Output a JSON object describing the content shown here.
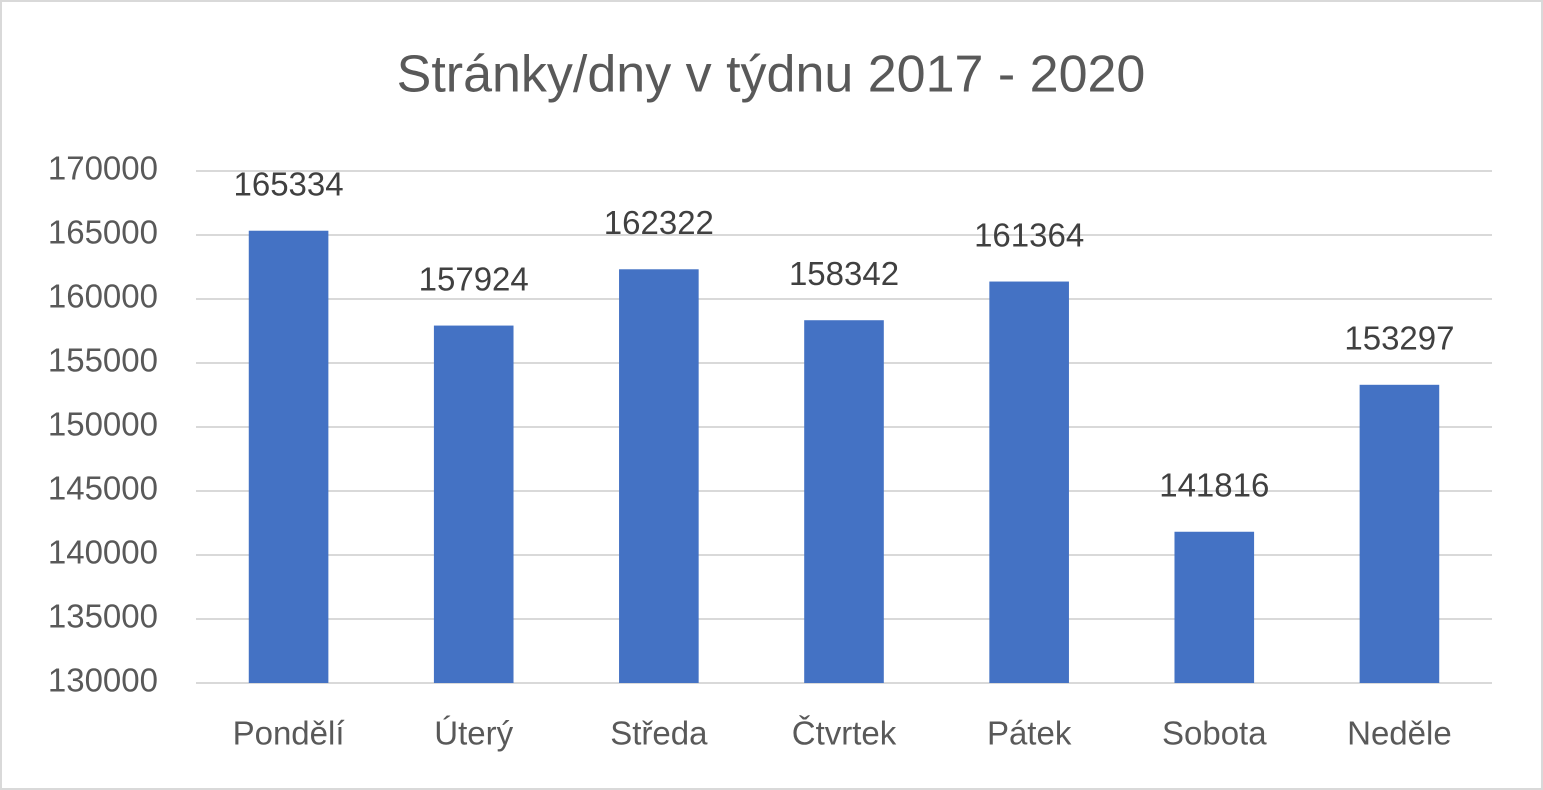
{
  "chart_data": {
    "type": "bar",
    "title": "Stránky/dny v týdnu 2017 - 2020",
    "categories": [
      "Pondělí",
      "Úterý",
      "Středa",
      "Čtvrtek",
      "Pátek",
      "Sobota",
      "Neděle"
    ],
    "values": [
      165334,
      157924,
      162322,
      158342,
      161364,
      141816,
      153297
    ],
    "color": "#4472c4",
    "ylim": [
      130000,
      170000
    ],
    "yticks": [
      130000,
      135000,
      140000,
      145000,
      150000,
      155000,
      160000,
      165000,
      170000
    ],
    "grid": true,
    "data_labels": true
  }
}
